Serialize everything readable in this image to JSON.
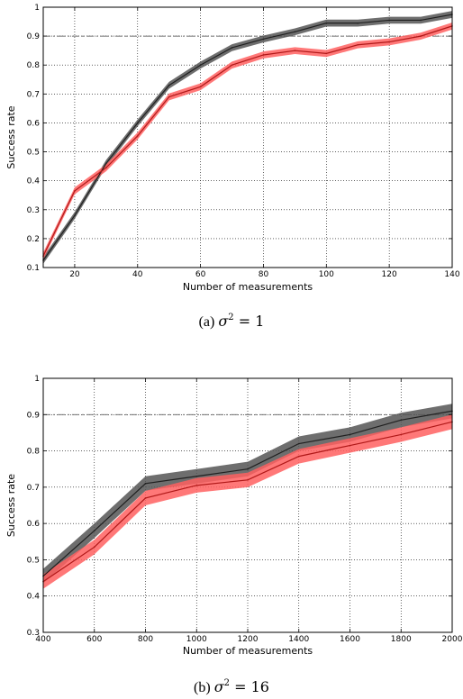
{
  "chart_data": [
    {
      "type": "line",
      "title": "",
      "xlabel": "Number of measurements",
      "ylabel": "Success rate",
      "xlim": [
        10,
        140
      ],
      "ylim": [
        0.1,
        1.0
      ],
      "xticks": [
        20,
        40,
        60,
        80,
        100,
        120,
        140
      ],
      "yticks": [
        0.1,
        0.2,
        0.3,
        0.4,
        0.5,
        0.6,
        0.7,
        0.8,
        0.9,
        1
      ],
      "ytick_labels": [
        "0.1",
        "0.2",
        "0.3",
        "0.4",
        "0.5",
        "0.6",
        "0.7",
        "0.8",
        "0.9",
        "1"
      ],
      "grid": true,
      "reference_line": 0.9,
      "x": [
        10,
        20,
        30,
        40,
        50,
        60,
        70,
        80,
        90,
        100,
        110,
        120,
        130,
        140
      ],
      "series": [
        {
          "color": "#505050",
          "band_color": "#555555",
          "values": [
            0.125,
            0.28,
            0.46,
            0.6,
            0.73,
            0.8,
            0.86,
            0.89,
            0.915,
            0.945,
            0.945,
            0.955,
            0.955,
            0.975
          ],
          "band": 0.012
        },
        {
          "color": "#e03030",
          "band_color": "#ff6060",
          "values": [
            0.14,
            0.365,
            0.445,
            0.555,
            0.69,
            0.725,
            0.8,
            0.835,
            0.85,
            0.84,
            0.87,
            0.88,
            0.9,
            0.935
          ],
          "band": 0.012
        }
      ],
      "caption": {
        "prefix": "(a)",
        "symbol": "σ",
        "exponent": "2",
        "equals": "=",
        "value": "1"
      }
    },
    {
      "type": "line",
      "title": "",
      "xlabel": "Number of measurements",
      "ylabel": "Success rate",
      "xlim": [
        400,
        2000
      ],
      "ylim": [
        0.3,
        1.0
      ],
      "xticks": [
        400,
        600,
        800,
        1000,
        1200,
        1400,
        1600,
        1800,
        2000
      ],
      "yticks": [
        0.3,
        0.4,
        0.5,
        0.6,
        0.7,
        0.8,
        0.9,
        1
      ],
      "ytick_labels": [
        "0.3",
        "0.4",
        "0.5",
        "0.6",
        "0.7",
        "0.8",
        "0.9",
        "1"
      ],
      "grid": true,
      "reference_line": 0.9,
      "x": [
        400,
        600,
        800,
        1000,
        1200,
        1400,
        1600,
        1800,
        2000
      ],
      "series": [
        {
          "color": "#404040",
          "band_color": "#555555",
          "values": [
            0.455,
            0.58,
            0.71,
            0.73,
            0.75,
            0.82,
            0.845,
            0.885,
            0.91
          ],
          "band": 0.02
        },
        {
          "color": "#e03030",
          "band_color": "#ff6060",
          "values": [
            0.44,
            0.535,
            0.67,
            0.705,
            0.72,
            0.785,
            0.815,
            0.845,
            0.88
          ],
          "band": 0.02
        }
      ],
      "caption": {
        "prefix": "(b)",
        "symbol": "σ",
        "exponent": "2",
        "equals": "=",
        "value": "16"
      }
    }
  ]
}
